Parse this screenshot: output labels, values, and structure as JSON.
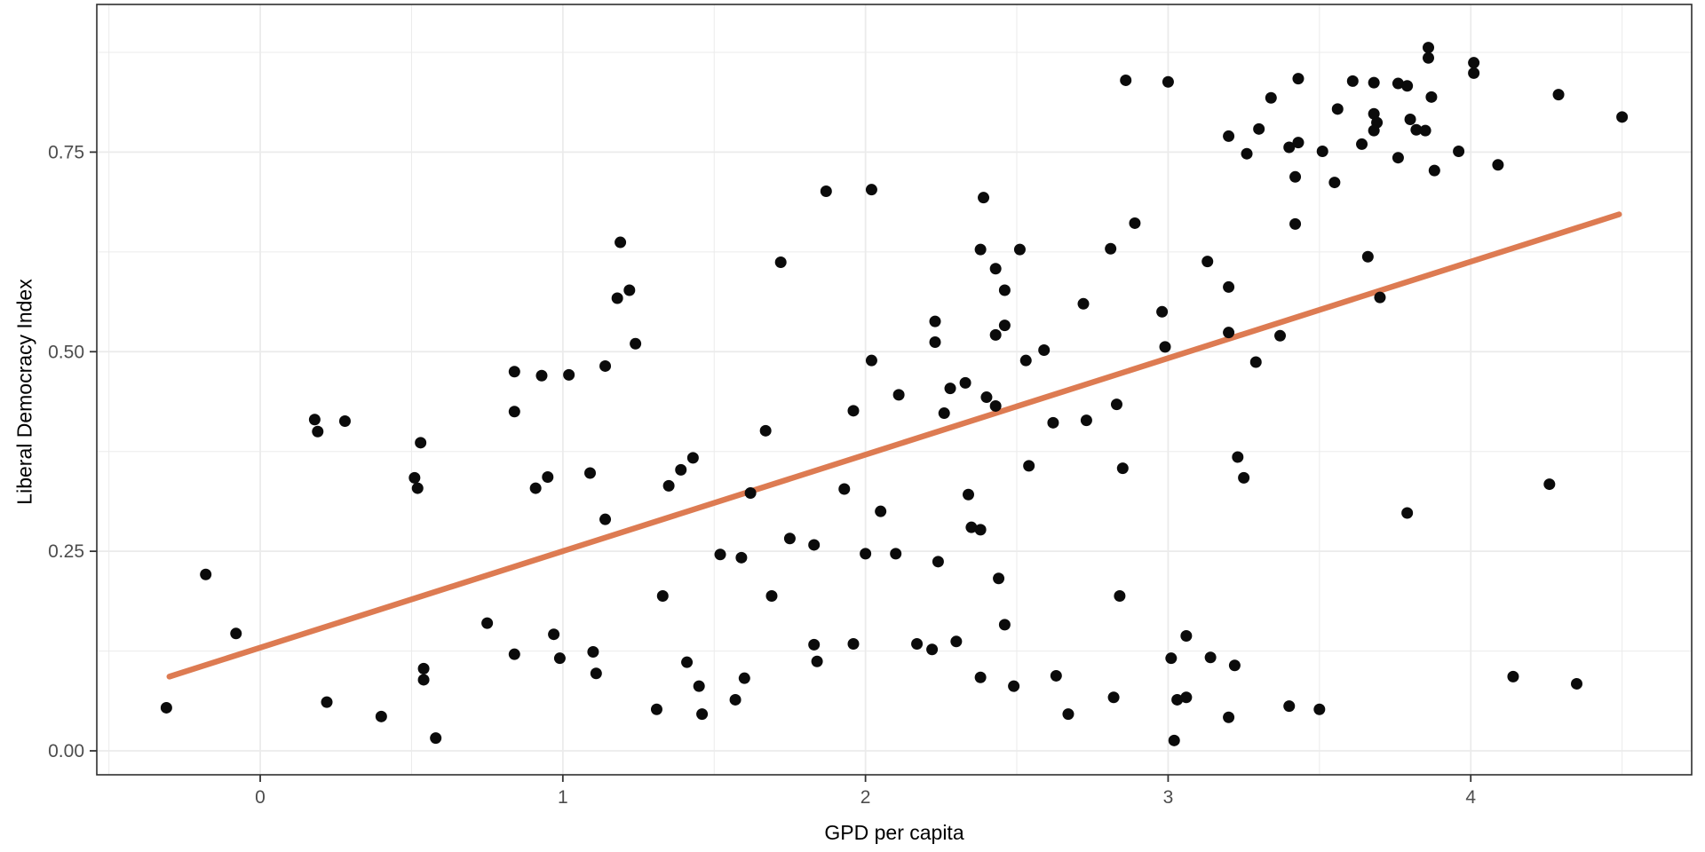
{
  "chart_data": {
    "type": "scatter",
    "title": "",
    "xlabel": "GPD per capita",
    "ylabel": "Liberal Democracy Index",
    "xlim": [
      -0.54,
      4.73
    ],
    "ylim": [
      -0.03,
      0.935
    ],
    "x_tick_values": [
      0,
      1,
      2,
      3,
      4
    ],
    "x_tick_labels": [
      "0",
      "1",
      "2",
      "3",
      "4"
    ],
    "y_tick_values": [
      0.0,
      0.25,
      0.5,
      0.75
    ],
    "y_tick_labels": [
      "0.00",
      "0.25",
      "0.50",
      "0.75"
    ],
    "x_minor_gridlines": [
      -0.5,
      0.5,
      1.5,
      2.5,
      3.5,
      4.5
    ],
    "y_minor_gridlines": [
      0.125,
      0.375,
      0.625,
      0.875
    ],
    "grid": true,
    "legend_position": "none",
    "colors": {
      "point": "#0b0b0b",
      "trend_line": "#DD7B52",
      "grid": "#EBEBEB",
      "panel_border": "#2f2f2f",
      "tick_mark": "#333333",
      "tick_label": "#4d4d4d",
      "axis_title": "#000000",
      "background": "#ffffff"
    },
    "trend_line": {
      "x": [
        -0.3,
        4.49
      ],
      "y": [
        0.093,
        0.672
      ]
    },
    "points": [
      [
        -0.31,
        0.054
      ],
      [
        -0.18,
        0.221
      ],
      [
        -0.08,
        0.147
      ],
      [
        0.18,
        0.415
      ],
      [
        0.19,
        0.4
      ],
      [
        0.28,
        0.413
      ],
      [
        0.22,
        0.061
      ],
      [
        0.4,
        0.043
      ],
      [
        0.51,
        0.342
      ],
      [
        0.52,
        0.329
      ],
      [
        0.53,
        0.386
      ],
      [
        0.54,
        0.103
      ],
      [
        0.54,
        0.089
      ],
      [
        0.58,
        0.016
      ],
      [
        0.75,
        0.16
      ],
      [
        0.84,
        0.121
      ],
      [
        0.84,
        0.425
      ],
      [
        0.84,
        0.475
      ],
      [
        0.91,
        0.329
      ],
      [
        0.93,
        0.47
      ],
      [
        0.95,
        0.343
      ],
      [
        0.97,
        0.146
      ],
      [
        0.99,
        0.116
      ],
      [
        1.02,
        0.471
      ],
      [
        1.09,
        0.348
      ],
      [
        1.1,
        0.124
      ],
      [
        1.11,
        0.097
      ],
      [
        1.14,
        0.29
      ],
      [
        1.14,
        0.482
      ],
      [
        1.18,
        0.567
      ],
      [
        1.19,
        0.637
      ],
      [
        1.22,
        0.577
      ],
      [
        1.24,
        0.51
      ],
      [
        1.31,
        0.052
      ],
      [
        1.33,
        0.194
      ],
      [
        1.35,
        0.332
      ],
      [
        1.39,
        0.352
      ],
      [
        1.41,
        0.111
      ],
      [
        1.43,
        0.367
      ],
      [
        1.45,
        0.081
      ],
      [
        1.46,
        0.046
      ],
      [
        1.52,
        0.246
      ],
      [
        1.57,
        0.064
      ],
      [
        1.59,
        0.242
      ],
      [
        1.6,
        0.091
      ],
      [
        1.62,
        0.323
      ],
      [
        1.67,
        0.401
      ],
      [
        1.69,
        0.194
      ],
      [
        1.72,
        0.612
      ],
      [
        1.75,
        0.266
      ],
      [
        1.83,
        0.258
      ],
      [
        1.83,
        0.133
      ],
      [
        1.84,
        0.112
      ],
      [
        1.87,
        0.701
      ],
      [
        1.93,
        0.328
      ],
      [
        1.96,
        0.426
      ],
      [
        1.96,
        0.134
      ],
      [
        2.0,
        0.247
      ],
      [
        2.02,
        0.703
      ],
      [
        2.02,
        0.489
      ],
      [
        2.05,
        0.3
      ],
      [
        2.1,
        0.247
      ],
      [
        2.11,
        0.446
      ],
      [
        2.17,
        0.134
      ],
      [
        2.22,
        0.127
      ],
      [
        2.23,
        0.538
      ],
      [
        2.23,
        0.512
      ],
      [
        2.24,
        0.237
      ],
      [
        2.26,
        0.423
      ],
      [
        2.28,
        0.454
      ],
      [
        2.3,
        0.137
      ],
      [
        2.33,
        0.461
      ],
      [
        2.34,
        0.321
      ],
      [
        2.35,
        0.28
      ],
      [
        2.38,
        0.277
      ],
      [
        2.38,
        0.628
      ],
      [
        2.38,
        0.092
      ],
      [
        2.39,
        0.693
      ],
      [
        2.4,
        0.443
      ],
      [
        2.43,
        0.432
      ],
      [
        2.43,
        0.604
      ],
      [
        2.43,
        0.521
      ],
      [
        2.44,
        0.216
      ],
      [
        2.46,
        0.577
      ],
      [
        2.46,
        0.533
      ],
      [
        2.46,
        0.158
      ],
      [
        2.49,
        0.081
      ],
      [
        2.51,
        0.628
      ],
      [
        2.53,
        0.489
      ],
      [
        2.54,
        0.357
      ],
      [
        2.59,
        0.502
      ],
      [
        2.62,
        0.411
      ],
      [
        2.63,
        0.094
      ],
      [
        2.67,
        0.046
      ],
      [
        2.72,
        0.56
      ],
      [
        2.73,
        0.414
      ],
      [
        2.81,
        0.629
      ],
      [
        2.82,
        0.067
      ],
      [
        2.83,
        0.434
      ],
      [
        2.84,
        0.194
      ],
      [
        2.85,
        0.354
      ],
      [
        2.86,
        0.84
      ],
      [
        2.89,
        0.661
      ],
      [
        2.98,
        0.55
      ],
      [
        2.99,
        0.506
      ],
      [
        3.0,
        0.838
      ],
      [
        3.01,
        0.116
      ],
      [
        3.02,
        0.013
      ],
      [
        3.03,
        0.064
      ],
      [
        3.06,
        0.067
      ],
      [
        3.06,
        0.144
      ],
      [
        3.13,
        0.613
      ],
      [
        3.14,
        0.117
      ],
      [
        3.2,
        0.042
      ],
      [
        3.2,
        0.581
      ],
      [
        3.2,
        0.524
      ],
      [
        3.22,
        0.107
      ],
      [
        3.23,
        0.368
      ],
      [
        3.25,
        0.342
      ],
      [
        3.29,
        0.487
      ],
      [
        3.37,
        0.52
      ],
      [
        3.4,
        0.056
      ],
      [
        3.42,
        0.66
      ],
      [
        3.42,
        0.719
      ],
      [
        3.5,
        0.052
      ],
      [
        3.55,
        0.712
      ],
      [
        3.66,
        0.619
      ],
      [
        3.7,
        0.568
      ],
      [
        3.79,
        0.298
      ],
      [
        4.14,
        0.093
      ],
      [
        4.26,
        0.334
      ],
      [
        4.35,
        0.084
      ],
      [
        3.86,
        0.881
      ],
      [
        3.86,
        0.868
      ],
      [
        4.01,
        0.862
      ],
      [
        4.01,
        0.849
      ],
      [
        3.43,
        0.842
      ],
      [
        3.61,
        0.839
      ],
      [
        3.68,
        0.837
      ],
      [
        3.76,
        0.836
      ],
      [
        3.79,
        0.833
      ],
      [
        3.34,
        0.818
      ],
      [
        3.87,
        0.819
      ],
      [
        3.56,
        0.804
      ],
      [
        3.68,
        0.798
      ],
      [
        3.69,
        0.787
      ],
      [
        3.68,
        0.777
      ],
      [
        3.8,
        0.791
      ],
      [
        3.82,
        0.778
      ],
      [
        3.85,
        0.777
      ],
      [
        3.3,
        0.779
      ],
      [
        3.2,
        0.77
      ],
      [
        3.26,
        0.748
      ],
      [
        3.4,
        0.756
      ],
      [
        3.43,
        0.762
      ],
      [
        3.51,
        0.751
      ],
      [
        3.96,
        0.751
      ],
      [
        3.64,
        0.76
      ],
      [
        3.88,
        0.727
      ],
      [
        4.09,
        0.734
      ],
      [
        3.76,
        0.743
      ],
      [
        4.29,
        0.822
      ],
      [
        4.5,
        0.794
      ]
    ]
  }
}
